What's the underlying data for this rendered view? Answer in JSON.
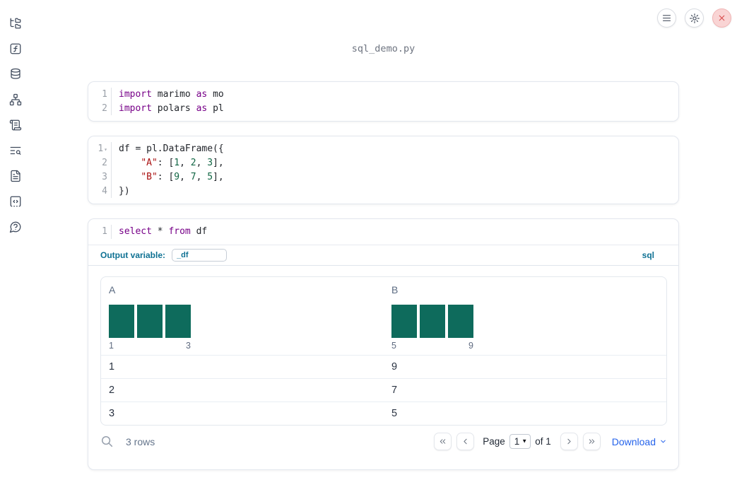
{
  "app": {
    "title": "sql_demo.py"
  },
  "colors": {
    "bar_green": "#0e6b5c",
    "keyword_purple": "#770088",
    "string_red": "#aa1111",
    "number_green": "#116644",
    "accent_teal": "#0e7193",
    "link_blue": "#2563eb"
  },
  "sidebar": {
    "items": [
      {
        "name": "file-explorer",
        "icon": "file-tree-icon"
      },
      {
        "name": "variables",
        "icon": "function-icon"
      },
      {
        "name": "data-sources",
        "icon": "database-icon"
      },
      {
        "name": "dependency-graph",
        "icon": "network-icon"
      },
      {
        "name": "outline",
        "icon": "scroll-icon"
      },
      {
        "name": "search-logs",
        "icon": "list-search-icon"
      },
      {
        "name": "documentation",
        "icon": "document-icon"
      },
      {
        "name": "snippets",
        "icon": "code-snippet-icon"
      },
      {
        "name": "help",
        "icon": "help-icon"
      }
    ]
  },
  "cells": [
    {
      "lines": [
        {
          "no": "1",
          "tokens": [
            {
              "t": "kw",
              "v": "import"
            },
            {
              "t": "pl",
              "v": " marimo "
            },
            {
              "t": "kw",
              "v": "as"
            },
            {
              "t": "pl",
              "v": " mo"
            }
          ]
        },
        {
          "no": "2",
          "tokens": [
            {
              "t": "kw",
              "v": "import"
            },
            {
              "t": "pl",
              "v": " polars "
            },
            {
              "t": "kw",
              "v": "as"
            },
            {
              "t": "pl",
              "v": " pl"
            }
          ]
        }
      ]
    },
    {
      "lines": [
        {
          "no": "1",
          "fold": true,
          "tokens": [
            {
              "t": "pl",
              "v": "df = pl.DataFrame({"
            }
          ]
        },
        {
          "no": "2",
          "tokens": [
            {
              "t": "pl",
              "v": "    "
            },
            {
              "t": "str",
              "v": "\"A\""
            },
            {
              "t": "pl",
              "v": ": ["
            },
            {
              "t": "num",
              "v": "1"
            },
            {
              "t": "pl",
              "v": ", "
            },
            {
              "t": "num",
              "v": "2"
            },
            {
              "t": "pl",
              "v": ", "
            },
            {
              "t": "num",
              "v": "3"
            },
            {
              "t": "pl",
              "v": "],"
            }
          ]
        },
        {
          "no": "3",
          "tokens": [
            {
              "t": "pl",
              "v": "    "
            },
            {
              "t": "str",
              "v": "\"B\""
            },
            {
              "t": "pl",
              "v": ": ["
            },
            {
              "t": "num",
              "v": "9"
            },
            {
              "t": "pl",
              "v": ", "
            },
            {
              "t": "num",
              "v": "7"
            },
            {
              "t": "pl",
              "v": ", "
            },
            {
              "t": "num",
              "v": "5"
            },
            {
              "t": "pl",
              "v": "],"
            }
          ]
        },
        {
          "no": "4",
          "tokens": [
            {
              "t": "pl",
              "v": "})"
            }
          ]
        }
      ]
    },
    {
      "lines": [
        {
          "no": "1",
          "tokens": [
            {
              "t": "kw",
              "v": "select"
            },
            {
              "t": "pl",
              "v": " * "
            },
            {
              "t": "kw",
              "v": "from"
            },
            {
              "t": "pl",
              "v": " df"
            }
          ]
        }
      ],
      "output_variable_label": "Output variable:",
      "output_variable_value": "_df",
      "language_badge": "sql"
    }
  ],
  "table": {
    "columns": [
      {
        "label": "A",
        "hist_bars": [
          1,
          1,
          1
        ],
        "hist_min": "1",
        "hist_max": "3"
      },
      {
        "label": "B",
        "hist_bars": [
          1,
          1,
          1
        ],
        "hist_min": "5",
        "hist_max": "9"
      }
    ],
    "rows": [
      [
        "1",
        "9"
      ],
      [
        "2",
        "7"
      ],
      [
        "3",
        "5"
      ]
    ],
    "footer": {
      "row_count": "3 rows",
      "page_label": "Page",
      "page_value": "1",
      "page_of": "of 1",
      "download_label": "Download"
    }
  }
}
